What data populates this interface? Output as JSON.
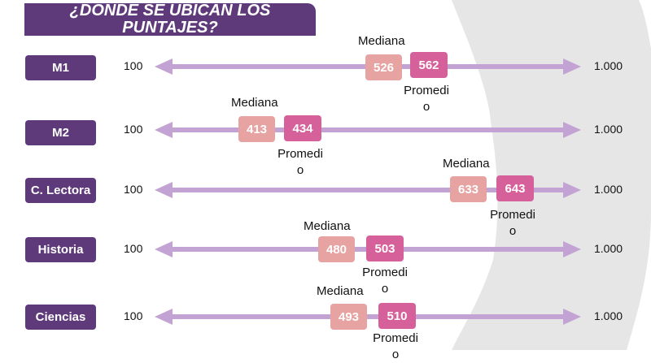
{
  "title": "¿DÓNDE SE UBICAN LOS PUNTAJES?",
  "colors": {
    "title_bg": "#5f3a7b",
    "arrow": "#c3a3d4",
    "median_box": "#e7a2a2",
    "average_box": "#d6609a",
    "background_blob": "#e6e6e6"
  },
  "scale": {
    "min": "100",
    "max": "1.000"
  },
  "median_label": "Mediana",
  "average_label": "Promedio",
  "rows": [
    {
      "subject": "M1",
      "median": "526",
      "average": "562"
    },
    {
      "subject": "M2",
      "median": "413",
      "average": "434"
    },
    {
      "subject": "C. Lectora",
      "median": "633",
      "average": "643"
    },
    {
      "subject": "Historia",
      "median": "480",
      "average": "503"
    },
    {
      "subject": "Ciencias",
      "median": "493",
      "average": "510"
    }
  ]
}
